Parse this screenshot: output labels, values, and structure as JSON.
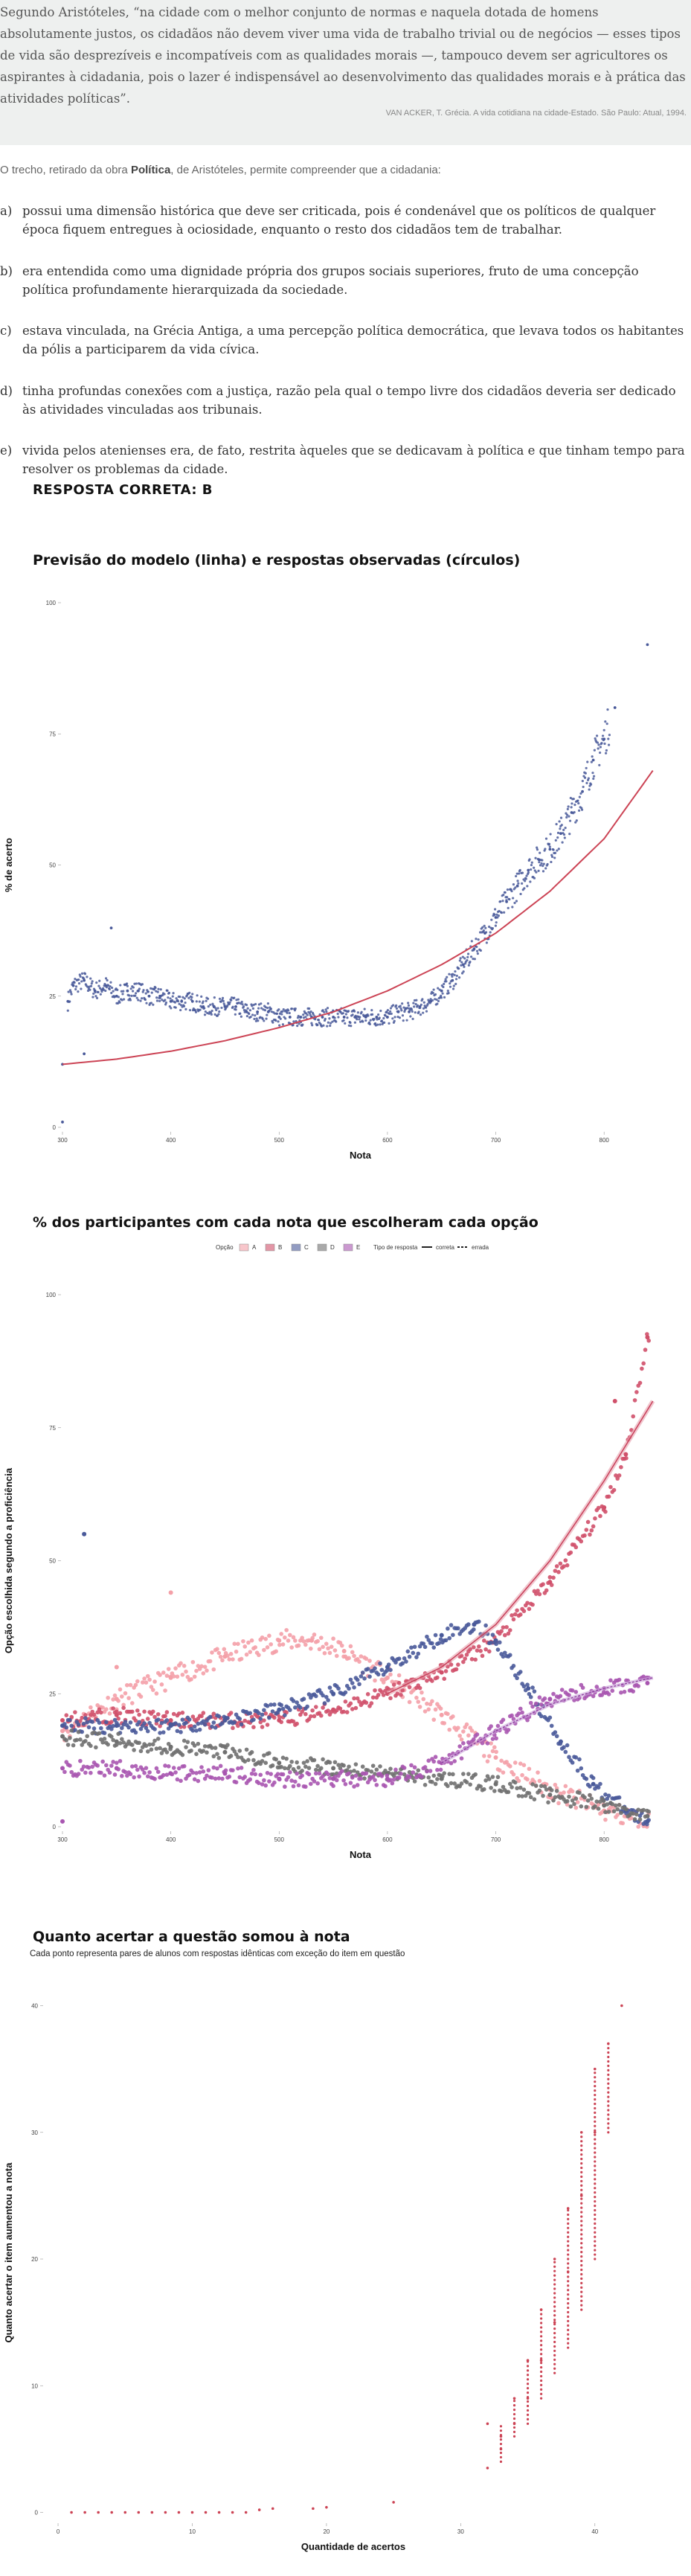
{
  "quote": {
    "text": "Segundo Aristóteles, “na cidade com o melhor conjunto de normas e naquela dotada de homens absolutamente justos, os cidadãos não devem viver uma vida de trabalho trivial ou de negócios — esses tipos de vida são desprezíveis e incompatíveis com as qualidades morais —, tampouco devem ser agricultores os aspirantes à cidadania, pois o lazer é indispensável ao desenvolvimento das qualidades morais e à prática das atividades políticas”.",
    "source": "VAN ACKER, T. Grécia. A vida cotidiana na cidade-Estado. São Paulo: Atual, 1994."
  },
  "intro": {
    "before": "O trecho, retirado da obra ",
    "work": "Política",
    "after": ", de Aristóteles, permite compreender que a cidadania:"
  },
  "options": [
    {
      "letter": "a)",
      "text": "possui uma dimensão histórica que deve ser criticada, pois é condenável que os políticos de qualquer época fiquem entregues à ociosidade, enquanto o resto dos cidadãos tem de trabalhar."
    },
    {
      "letter": "b)",
      "text": "era entendida como uma dignidade própria dos grupos sociais superiores, fruto de uma concepção política profundamente hierarquizada da sociedade."
    },
    {
      "letter": "c)",
      "text": "estava vinculada, na Grécia Antiga, a uma percepção política democrática, que levava todos os habitantes da pólis a participarem da vida cívica."
    },
    {
      "letter": "d)",
      "text": "tinha profundas conexões com a justiça, razão pela qual o tempo livre dos cidadãos deveria ser dedicado às atividades vinculadas aos tribunais."
    },
    {
      "letter": "e)",
      "text": "vivida pelos atenienses era, de fato, restrita àqueles que se dedicavam à política e que tinham tempo para resolver os problemas da cidade."
    }
  ],
  "answer": "RESPOSTA CORRETA: B",
  "colors": {
    "A": "#f4a0a8",
    "B": "#d0506a",
    "C": "#4a5a9a",
    "D": "#707070",
    "E": "#a855b0",
    "line": "#cc4455"
  },
  "chart_data": [
    {
      "type": "scatter",
      "title": "Previsão do modelo (linha) e respostas observadas (círculos)",
      "xlabel": "Nota",
      "ylabel": "% de acerto",
      "x_ticks": [
        "300",
        "400",
        "500",
        "600",
        "700",
        "800"
      ],
      "y_ticks": [
        "0",
        "25",
        "50",
        "75",
        "100"
      ],
      "xlim": [
        300,
        850
      ],
      "ylim": [
        0,
        100
      ],
      "series": [
        {
          "role": "observed",
          "color": "#4a5a9a",
          "points": [
            [
              300,
              1
            ],
            [
              300,
              12
            ],
            [
              305,
              24
            ],
            [
              310,
              27
            ],
            [
              320,
              28
            ],
            [
              330,
              26
            ],
            [
              340,
              27
            ],
            [
              350,
              25
            ],
            [
              360,
              26
            ],
            [
              370,
              26
            ],
            [
              380,
              25
            ],
            [
              390,
              25
            ],
            [
              400,
              24
            ],
            [
              410,
              24
            ],
            [
              420,
              24
            ],
            [
              430,
              23
            ],
            [
              440,
              23
            ],
            [
              450,
              23
            ],
            [
              460,
              23
            ],
            [
              470,
              22
            ],
            [
              480,
              22
            ],
            [
              490,
              22
            ],
            [
              500,
              21
            ],
            [
              510,
              21
            ],
            [
              520,
              21
            ],
            [
              530,
              21
            ],
            [
              540,
              21
            ],
            [
              550,
              21
            ],
            [
              560,
              21
            ],
            [
              570,
              21
            ],
            [
              580,
              21
            ],
            [
              590,
              21
            ],
            [
              600,
              21
            ],
            [
              610,
              22
            ],
            [
              620,
              22
            ],
            [
              630,
              23
            ],
            [
              640,
              24
            ],
            [
              650,
              26
            ],
            [
              660,
              28
            ],
            [
              670,
              31
            ],
            [
              680,
              34
            ],
            [
              690,
              37
            ],
            [
              700,
              40
            ],
            [
              710,
              43
            ],
            [
              720,
              46
            ],
            [
              730,
              49
            ],
            [
              740,
              51
            ],
            [
              750,
              53
            ],
            [
              760,
              56
            ],
            [
              770,
              60
            ],
            [
              780,
              64
            ],
            [
              790,
              70
            ],
            [
              800,
              74
            ],
            [
              810,
              80
            ],
            [
              840,
              92
            ],
            [
              345,
              38
            ],
            [
              320,
              14
            ]
          ]
        },
        {
          "role": "model",
          "color": "#cc4455",
          "points": [
            [
              300,
              12
            ],
            [
              350,
              13
            ],
            [
              400,
              14.5
            ],
            [
              450,
              16.5
            ],
            [
              500,
              19
            ],
            [
              550,
              22
            ],
            [
              600,
              26
            ],
            [
              650,
              31
            ],
            [
              700,
              37
            ],
            [
              750,
              45
            ],
            [
              800,
              55
            ],
            [
              845,
              68
            ]
          ]
        }
      ]
    },
    {
      "type": "scatter",
      "title": "% dos participantes com cada nota que escolheram cada opção",
      "xlabel": "Nota",
      "ylabel": "Opção escolhida segundo a proficiência",
      "x_ticks": [
        "300",
        "400",
        "500",
        "600",
        "700",
        "800"
      ],
      "y_ticks": [
        "0",
        "25",
        "50",
        "75",
        "100"
      ],
      "xlim": [
        300,
        850
      ],
      "ylim": [
        0,
        100
      ],
      "legend": {
        "title_option": "Opção",
        "options": [
          "A",
          "B",
          "C",
          "D",
          "E"
        ],
        "title_type": "Tipo de resposta",
        "types": [
          "correta",
          "errada"
        ],
        "position": "top"
      },
      "series": [
        {
          "name": "A",
          "color": "#f4a0a8",
          "points": [
            [
              300,
              18
            ],
            [
              350,
              24
            ],
            [
              400,
              28
            ],
            [
              450,
              32
            ],
            [
              500,
              35
            ],
            [
              530,
              35
            ],
            [
              560,
              33
            ],
            [
              600,
              28
            ],
            [
              650,
              21
            ],
            [
              700,
              13
            ],
            [
              750,
              7
            ],
            [
              800,
              3
            ],
            [
              840,
              1
            ],
            [
              400,
              44
            ],
            [
              350,
              30
            ]
          ]
        },
        {
          "name": "B",
          "color": "#d0506a",
          "points": [
            [
              300,
              20
            ],
            [
              350,
              21
            ],
            [
              400,
              20
            ],
            [
              450,
              20
            ],
            [
              500,
              20
            ],
            [
              550,
              22
            ],
            [
              600,
              25
            ],
            [
              650,
              29
            ],
            [
              700,
              35
            ],
            [
              750,
              46
            ],
            [
              800,
              60
            ],
            [
              820,
              70
            ],
            [
              840,
              92
            ],
            [
              810,
              80
            ]
          ]
        },
        {
          "name": "C",
          "color": "#4a5a9a",
          "points": [
            [
              300,
              19
            ],
            [
              350,
              19
            ],
            [
              400,
              19
            ],
            [
              450,
              20
            ],
            [
              500,
              22
            ],
            [
              550,
              25
            ],
            [
              600,
              30
            ],
            [
              650,
              36
            ],
            [
              680,
              38
            ],
            [
              700,
              35
            ],
            [
              730,
              26
            ],
            [
              760,
              16
            ],
            [
              790,
              8
            ],
            [
              820,
              3
            ],
            [
              840,
              1
            ],
            [
              320,
              55
            ]
          ]
        },
        {
          "name": "D",
          "color": "#707070",
          "points": [
            [
              300,
              17
            ],
            [
              350,
              16
            ],
            [
              400,
              15
            ],
            [
              450,
              14
            ],
            [
              500,
              12
            ],
            [
              550,
              11
            ],
            [
              600,
              10
            ],
            [
              650,
              9
            ],
            [
              700,
              8
            ],
            [
              750,
              6
            ],
            [
              800,
              4
            ],
            [
              840,
              2
            ]
          ]
        },
        {
          "name": "E",
          "color": "#a855b0",
          "points": [
            [
              300,
              11
            ],
            [
              350,
              11
            ],
            [
              400,
              10
            ],
            [
              450,
              10
            ],
            [
              500,
              9
            ],
            [
              550,
              9
            ],
            [
              600,
              9
            ],
            [
              650,
              12
            ],
            [
              700,
              18
            ],
            [
              750,
              24
            ],
            [
              800,
              26
            ],
            [
              840,
              27
            ],
            [
              300,
              1
            ]
          ]
        }
      ]
    },
    {
      "type": "scatter",
      "title": "Quanto acertar a questão somou à nota",
      "subtitle": "Cada ponto representa pares de alunos com respostas idênticas com exceção do item em questão",
      "xlabel": "Quantidade de acertos",
      "ylabel": "Quanto acertar o item aumentou a nota",
      "x_ticks": [
        "0",
        "10",
        "20",
        "30",
        "40"
      ],
      "y_ticks": [
        "0",
        "10",
        "20",
        "30",
        "40"
      ],
      "xlim": [
        -1,
        45
      ],
      "ylim": [
        -0.5,
        41.5
      ],
      "series": [
        {
          "color": "#cc4455",
          "points": [
            [
              1,
              0
            ],
            [
              2,
              0
            ],
            [
              3,
              0
            ],
            [
              4,
              0
            ],
            [
              5,
              0
            ],
            [
              6,
              0
            ],
            [
              7,
              0
            ],
            [
              8,
              0
            ],
            [
              9,
              0
            ],
            [
              10,
              0
            ],
            [
              11,
              0
            ],
            [
              12,
              0
            ],
            [
              13,
              0
            ],
            [
              14,
              0
            ],
            [
              15,
              0.2
            ],
            [
              16,
              0.3
            ],
            [
              19,
              0.3
            ],
            [
              20,
              0.4
            ],
            [
              25,
              0.8
            ],
            [
              32,
              3.5
            ],
            [
              32,
              7
            ],
            [
              33,
              5
            ],
            [
              33,
              6
            ],
            [
              34,
              7
            ],
            [
              34,
              9
            ],
            [
              35,
              9
            ],
            [
              35,
              12
            ],
            [
              36,
              12
            ],
            [
              36,
              16
            ],
            [
              37,
              15
            ],
            [
              37,
              20
            ],
            [
              38,
              19
            ],
            [
              38,
              24
            ],
            [
              39,
              25
            ],
            [
              39,
              30
            ],
            [
              40,
              30
            ],
            [
              40,
              35
            ],
            [
              41,
              37
            ],
            [
              42,
              40
            ]
          ],
          "ranges": [
            [
              33,
              4,
              7
            ],
            [
              34,
              6,
              9
            ],
            [
              35,
              7,
              12
            ],
            [
              36,
              9,
              16
            ],
            [
              37,
              11,
              20
            ],
            [
              38,
              13,
              24
            ],
            [
              39,
              16,
              30
            ],
            [
              40,
              20,
              35
            ],
            [
              41,
              30,
              37
            ]
          ]
        }
      ]
    }
  ]
}
